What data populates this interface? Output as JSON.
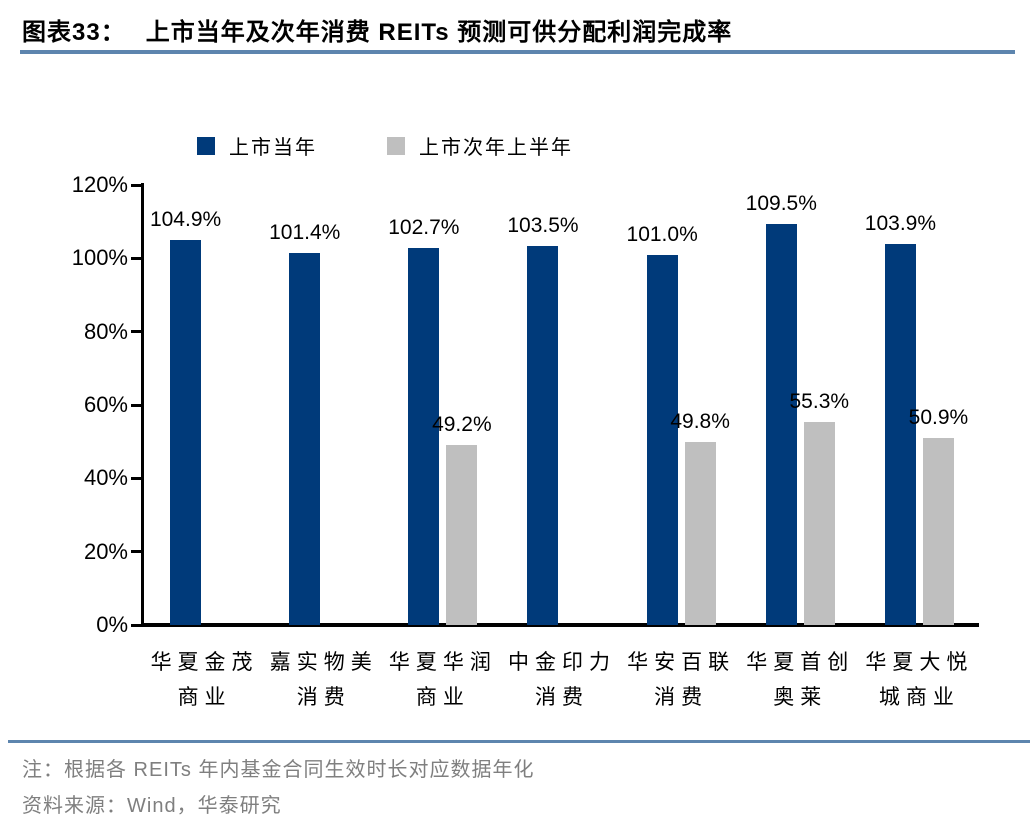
{
  "header": {
    "label": "图表33：",
    "title": "上市当年及次年消费 REITs 预测可供分配利润完成率"
  },
  "chart_data": {
    "type": "bar",
    "title": "上市当年及次年消费 REITs 预测可供分配利润完成率",
    "categories": [
      [
        "华夏金茂",
        "商业"
      ],
      [
        "嘉实物美",
        "消费"
      ],
      [
        "华夏华润",
        "商业"
      ],
      [
        "中金印力",
        "消费"
      ],
      [
        "华安百联",
        "消费"
      ],
      [
        "华夏首创",
        "奥莱"
      ],
      [
        "华夏大悦",
        "城商业"
      ]
    ],
    "series": [
      {
        "name": "上市当年",
        "color": "#003a7a",
        "values": [
          104.9,
          101.4,
          102.7,
          103.5,
          101.0,
          109.5,
          103.9
        ]
      },
      {
        "name": "上市次年上半年",
        "color": "#bfbfbf",
        "values": [
          null,
          null,
          49.2,
          null,
          49.8,
          55.3,
          50.9
        ]
      }
    ],
    "ylim": [
      0,
      120
    ],
    "yticks": [
      "0%",
      "20%",
      "40%",
      "60%",
      "80%",
      "100%",
      "120%"
    ],
    "grid": false,
    "legend_position": "top",
    "label_format": "one-decimal-percent"
  },
  "footer": {
    "note": "注：根据各 REITs 年内基金合同生效时长对应数据年化",
    "source": "资料来源：Wind，华泰研究"
  }
}
